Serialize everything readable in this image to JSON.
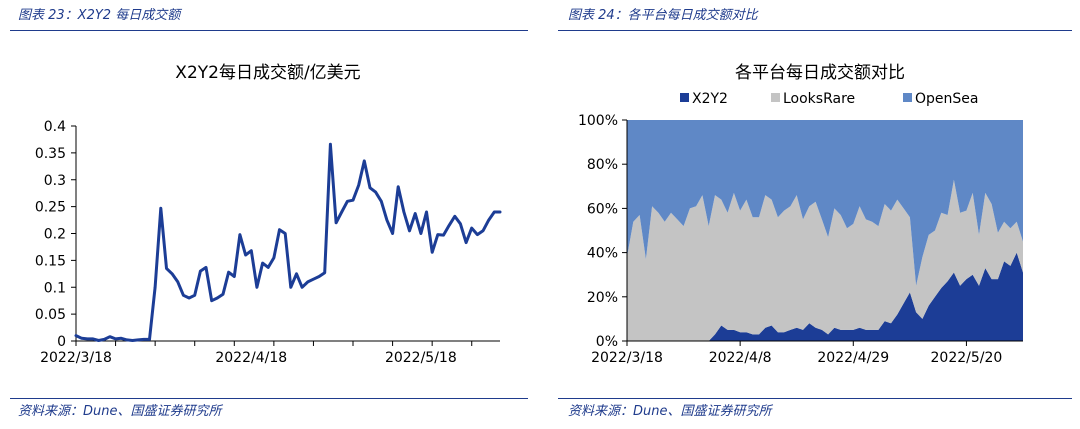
{
  "left_panel": {
    "caption": "图表 23：X2Y2 每日成交额",
    "source": "资料来源：Dune、国盛证券研究所"
  },
  "right_panel": {
    "caption": "图表 24：各平台每日成交额对比",
    "source": "资料来源：Dune、国盛证券研究所"
  },
  "colors": {
    "caption_blue": "#1f3b8c",
    "x2y2": "#1c3d96",
    "looksrare": "#c4c4c4",
    "opensea": "#5f88c6"
  },
  "chart_data": [
    {
      "type": "line",
      "title": "X2Y2每日成交额/亿美元",
      "xlabel": "",
      "ylabel": "",
      "ylim": [
        0,
        0.4
      ],
      "yticks": [
        "0",
        "0.05",
        "0.1",
        "0.15",
        "0.2",
        "0.25",
        "0.3",
        "0.35",
        "0.4"
      ],
      "xtick_labels": [
        "2022/3/18",
        "2022/4/18",
        "2022/5/18"
      ],
      "x_start": "2022/3/18",
      "grid": false,
      "legend": "none",
      "series": [
        {
          "values": [
            0.01,
            0.005,
            0.004,
            0.004,
            0.001,
            0.003,
            0.008,
            0.004,
            0.005,
            0.002,
            0.001,
            0.002,
            0.003,
            0.003,
            0.1,
            0.247,
            0.135,
            0.125,
            0.11,
            0.085,
            0.08,
            0.085,
            0.13,
            0.137,
            0.075,
            0.08,
            0.087,
            0.128,
            0.12,
            0.198,
            0.16,
            0.168,
            0.1,
            0.145,
            0.137,
            0.155,
            0.207,
            0.2,
            0.1,
            0.125,
            0.1,
            0.11,
            0.115,
            0.12,
            0.127,
            0.366,
            0.22,
            0.24,
            0.26,
            0.262,
            0.29,
            0.335,
            0.285,
            0.277,
            0.26,
            0.225,
            0.2,
            0.287,
            0.24,
            0.205,
            0.237,
            0.2,
            0.24,
            0.165,
            0.198,
            0.197,
            0.215,
            0.232,
            0.218,
            0.183,
            0.21,
            0.198,
            0.205,
            0.225,
            0.24,
            0.24
          ]
        }
      ]
    },
    {
      "type": "area",
      "stacked": true,
      "title": "各平台每日成交额对比",
      "xlabel": "",
      "ylabel": "",
      "ylim": [
        0,
        100
      ],
      "yticks": [
        "0%",
        "20%",
        "40%",
        "60%",
        "80%",
        "100%"
      ],
      "xtick_labels": [
        "2022/3/18",
        "2022/4/8",
        "2022/4/29",
        "2022/5/20"
      ],
      "x_start": "2022/3/18",
      "legend": "top",
      "series": [
        {
          "name": "X2Y2",
          "values": [
            0,
            0,
            0,
            0,
            0,
            0,
            0,
            0,
            0,
            0,
            0,
            0,
            0,
            0,
            3,
            7,
            5,
            5,
            4,
            4,
            3,
            3,
            6,
            7,
            4,
            4,
            5,
            6,
            5,
            8,
            6,
            5,
            3,
            6,
            5,
            5,
            5,
            6,
            5,
            5,
            5,
            9,
            8,
            12,
            17,
            22,
            13,
            10,
            16,
            20,
            24,
            27,
            31,
            25,
            28,
            30,
            25,
            33,
            28,
            28,
            36,
            34,
            40,
            31
          ]
        },
        {
          "name": "LooksRare",
          "values": [
            38,
            54,
            57,
            37,
            61,
            58,
            54,
            58,
            55,
            52,
            60,
            61,
            66,
            52,
            63,
            57,
            53,
            62,
            55,
            60,
            53,
            53,
            60,
            57,
            52,
            55,
            56,
            60,
            50,
            53,
            57,
            50,
            44,
            54,
            52,
            46,
            48,
            55,
            50,
            49,
            47,
            53,
            51,
            52,
            43,
            34,
            12,
            28,
            32,
            30,
            34,
            30,
            42,
            33,
            31,
            37,
            23,
            34,
            34,
            21,
            18,
            17,
            14,
            14
          ]
        },
        {
          "name": "OpenSea",
          "values": [
            62,
            46,
            43,
            63,
            39,
            42,
            46,
            42,
            45,
            48,
            40,
            39,
            34,
            48,
            34,
            36,
            42,
            33,
            41,
            36,
            44,
            44,
            34,
            36,
            44,
            41,
            39,
            34,
            45,
            39,
            37,
            45,
            53,
            40,
            43,
            49,
            47,
            39,
            45,
            46,
            48,
            38,
            41,
            36,
            40,
            44,
            75,
            62,
            52,
            50,
            42,
            43,
            27,
            42,
            41,
            33,
            52,
            33,
            38,
            51,
            46,
            49,
            46,
            55
          ]
        }
      ]
    }
  ]
}
